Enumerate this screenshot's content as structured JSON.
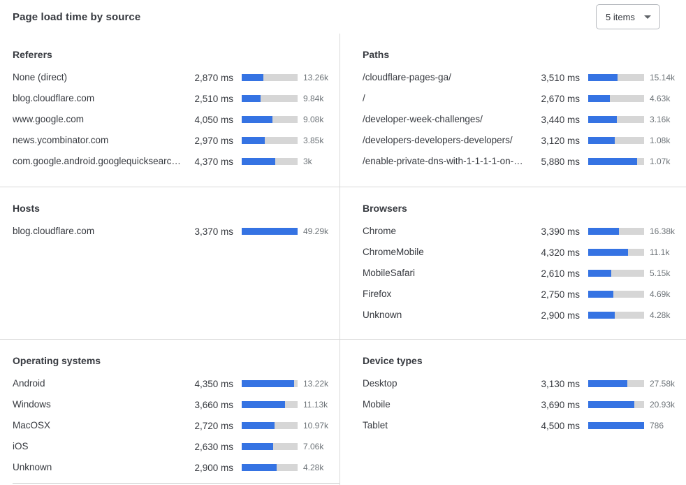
{
  "header": {
    "title": "Page load time by source",
    "items_dropdown": {
      "value": "5 items"
    }
  },
  "colors": {
    "bar_fill": "#3573e3",
    "bar_track": "#d6d6d6",
    "text_primary": "#36393f",
    "text_secondary": "#6e7479",
    "divider": "#d9d9d9",
    "dropdown_border": "#b6b9be"
  },
  "chart_data": [
    {
      "title": "Referers",
      "type": "bar",
      "unit": "ms",
      "column": "left",
      "section": 1,
      "bar_scale_max_ms": 7300,
      "rows": [
        {
          "label": "None (direct)",
          "load_time_ms": 2870,
          "load_time_label": "2,870 ms",
          "count_label": "13.26k",
          "bar_percent": 39
        },
        {
          "label": "blog.cloudflare.com",
          "load_time_ms": 2510,
          "load_time_label": "2,510 ms",
          "count_label": "9.84k",
          "bar_percent": 34
        },
        {
          "label": "www.google.com",
          "load_time_ms": 4050,
          "load_time_label": "4,050 ms",
          "count_label": "9.08k",
          "bar_percent": 55
        },
        {
          "label": "news.ycombinator.com",
          "load_time_ms": 2970,
          "load_time_label": "2,970 ms",
          "count_label": "3.85k",
          "bar_percent": 41
        },
        {
          "label": "com.google.android.googlequicksearc…",
          "load_time_ms": 4370,
          "load_time_label": "4,370 ms",
          "count_label": "3k",
          "bar_percent": 60
        }
      ]
    },
    {
      "title": "Paths",
      "type": "bar",
      "unit": "ms",
      "column": "right",
      "section": 1,
      "bar_scale_max_ms": 6600,
      "rows": [
        {
          "label": "/cloudflare-pages-ga/",
          "load_time_ms": 3510,
          "load_time_label": "3,510 ms",
          "count_label": "15.14k",
          "bar_percent": 53
        },
        {
          "label": "/",
          "load_time_ms": 2670,
          "load_time_label": "2,670 ms",
          "count_label": "4.63k",
          "bar_percent": 39
        },
        {
          "label": "/developer-week-challenges/",
          "load_time_ms": 3440,
          "load_time_label": "3,440 ms",
          "count_label": "3.16k",
          "bar_percent": 51
        },
        {
          "label": "/developers-developers-developers/",
          "load_time_ms": 3120,
          "load_time_label": "3,120 ms",
          "count_label": "1.08k",
          "bar_percent": 47
        },
        {
          "label": "/enable-private-dns-with-1-1-1-1-on-…",
          "load_time_ms": 5880,
          "load_time_label": "5,880 ms",
          "count_label": "1.07k",
          "bar_percent": 88
        }
      ]
    },
    {
      "title": "Hosts",
      "type": "bar",
      "unit": "ms",
      "column": "left",
      "section": 2,
      "bar_scale_max_ms": 3370,
      "rows": [
        {
          "label": "blog.cloudflare.com",
          "load_time_ms": 3370,
          "load_time_label": "3,370 ms",
          "count_label": "49.29k",
          "bar_percent": 100
        }
      ]
    },
    {
      "title": "Browsers",
      "type": "bar",
      "unit": "ms",
      "column": "right",
      "section": 2,
      "bar_scale_max_ms": 6150,
      "rows": [
        {
          "label": "Chrome",
          "load_time_ms": 3390,
          "load_time_label": "3,390 ms",
          "count_label": "16.38k",
          "bar_percent": 55
        },
        {
          "label": "ChromeMobile",
          "load_time_ms": 4320,
          "load_time_label": "4,320 ms",
          "count_label": "11.1k",
          "bar_percent": 71
        },
        {
          "label": "MobileSafari",
          "load_time_ms": 2610,
          "load_time_label": "2,610 ms",
          "count_label": "5.15k",
          "bar_percent": 41
        },
        {
          "label": "Firefox",
          "load_time_ms": 2750,
          "load_time_label": "2,750 ms",
          "count_label": "4.69k",
          "bar_percent": 45
        },
        {
          "label": "Unknown",
          "load_time_ms": 2900,
          "load_time_label": "2,900 ms",
          "count_label": "4.28k",
          "bar_percent": 47
        }
      ]
    },
    {
      "title": "Operating systems",
      "type": "bar",
      "unit": "ms",
      "column": "left",
      "section": 3,
      "bar_scale_max_ms": 4650,
      "rows": [
        {
          "label": "Android",
          "load_time_ms": 4350,
          "load_time_label": "4,350 ms",
          "count_label": "13.22k",
          "bar_percent": 94
        },
        {
          "label": "Windows",
          "load_time_ms": 3660,
          "load_time_label": "3,660 ms",
          "count_label": "11.13k",
          "bar_percent": 78
        },
        {
          "label": "MacOSX",
          "load_time_ms": 2720,
          "load_time_label": "2,720 ms",
          "count_label": "10.97k",
          "bar_percent": 59
        },
        {
          "label": "iOS",
          "load_time_ms": 2630,
          "load_time_label": "2,630 ms",
          "count_label": "7.06k",
          "bar_percent": 56
        },
        {
          "label": "Unknown",
          "load_time_ms": 2900,
          "load_time_label": "2,900 ms",
          "count_label": "4.28k",
          "bar_percent": 62
        }
      ]
    },
    {
      "title": "Device types",
      "type": "bar",
      "unit": "ms",
      "column": "right",
      "section": 3,
      "bar_scale_max_ms": 4500,
      "rows": [
        {
          "label": "Desktop",
          "load_time_ms": 3130,
          "load_time_label": "3,130 ms",
          "count_label": "27.58k",
          "bar_percent": 70
        },
        {
          "label": "Mobile",
          "load_time_ms": 3690,
          "load_time_label": "3,690 ms",
          "count_label": "20.93k",
          "bar_percent": 83
        },
        {
          "label": "Tablet",
          "load_time_ms": 4500,
          "load_time_label": "4,500 ms",
          "count_label": "786",
          "bar_percent": 100
        }
      ]
    }
  ]
}
